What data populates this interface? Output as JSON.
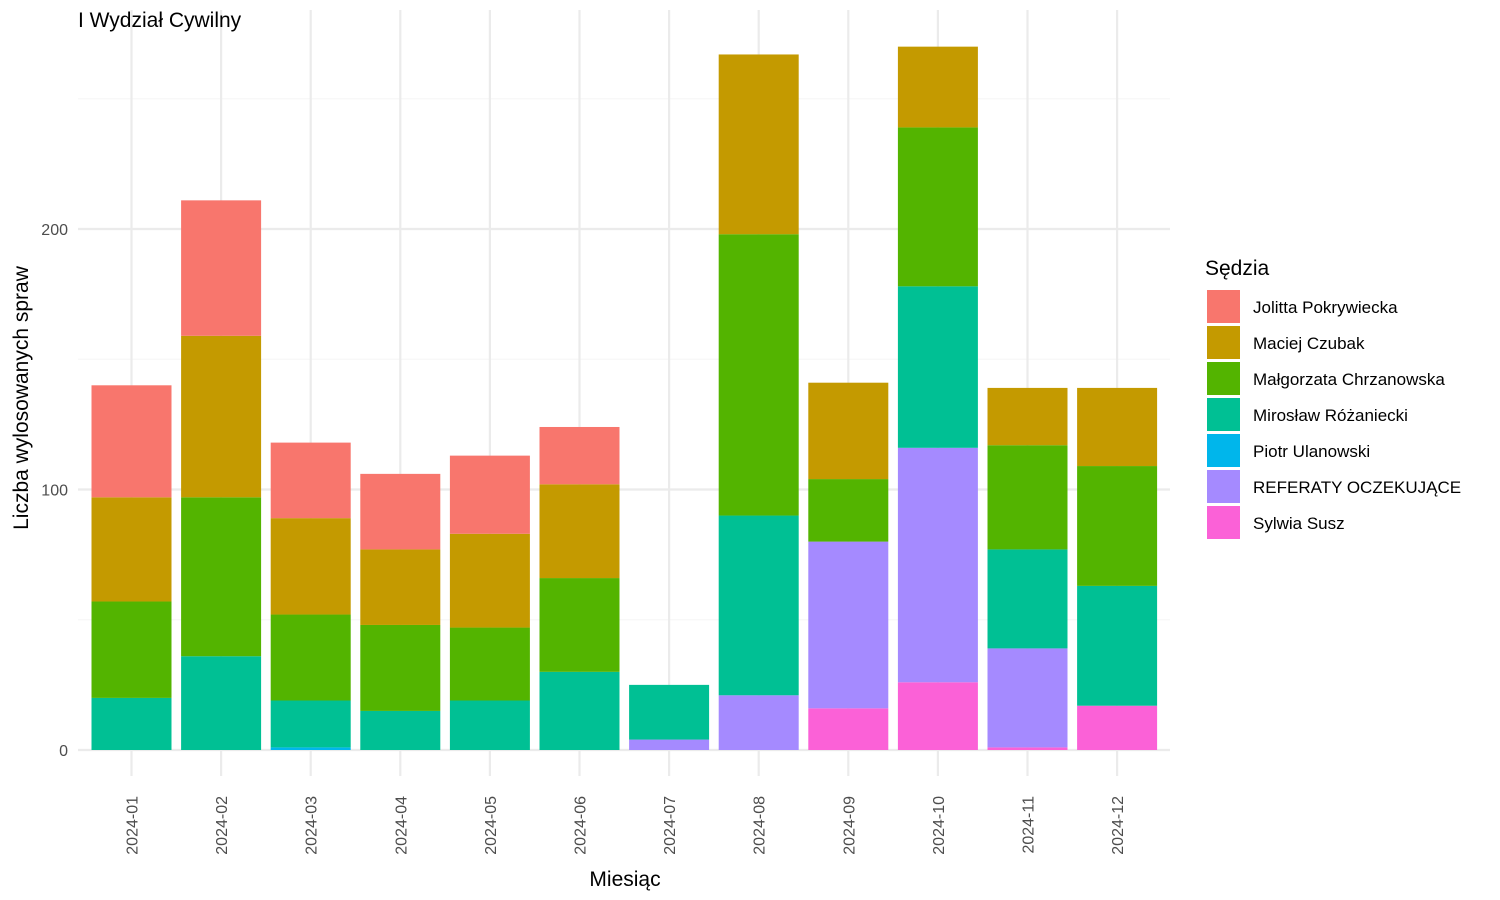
{
  "chart_data": {
    "type": "bar",
    "stacked": true,
    "title": "I Wydział Cywilny",
    "xlabel": "Miesiąc",
    "ylabel": "Liczba wylosowanych spraw",
    "ylim": [
      -10,
      270
    ],
    "yticks": [
      0,
      100,
      200
    ],
    "grid": true,
    "legend_title": "Sędzia",
    "legend_position": "right",
    "categories": [
      "2024-01",
      "2024-02",
      "2024-03",
      "2024-04",
      "2024-05",
      "2024-06",
      "2024-07",
      "2024-08",
      "2024-09",
      "2024-10",
      "2024-11",
      "2024-12"
    ],
    "series": [
      {
        "name": "Jolitta Pokrywiecka",
        "color": "#F8766D",
        "values": [
          43,
          52,
          29,
          29,
          30,
          22,
          0,
          0,
          0,
          0,
          0,
          0
        ]
      },
      {
        "name": "Maciej Czubak",
        "color": "#C49A00",
        "values": [
          40,
          62,
          37,
          29,
          36,
          36,
          0,
          69,
          37,
          31,
          22,
          30
        ]
      },
      {
        "name": "Małgorzata Chrzanowska",
        "color": "#53B400",
        "values": [
          37,
          61,
          33,
          33,
          28,
          36,
          0,
          108,
          24,
          61,
          40,
          46
        ]
      },
      {
        "name": "Mirosław Różaniecki",
        "color": "#00C094",
        "values": [
          20,
          36,
          18,
          15,
          19,
          30,
          21,
          69,
          0,
          62,
          38,
          46
        ]
      },
      {
        "name": "Piotr Ulanowski",
        "color": "#00B6EB",
        "values": [
          0,
          0,
          1,
          0,
          0,
          0,
          0,
          0,
          0,
          0,
          0,
          0
        ]
      },
      {
        "name": "REFERATY OCZEKUJĄCE",
        "color": "#A58AFF",
        "values": [
          0,
          0,
          0,
          0,
          0,
          0,
          4,
          21,
          64,
          90,
          38,
          0
        ]
      },
      {
        "name": "Sylwia Susz",
        "color": "#FB61D7",
        "values": [
          0,
          0,
          0,
          0,
          0,
          0,
          0,
          0,
          16,
          26,
          1,
          17
        ]
      }
    ]
  }
}
